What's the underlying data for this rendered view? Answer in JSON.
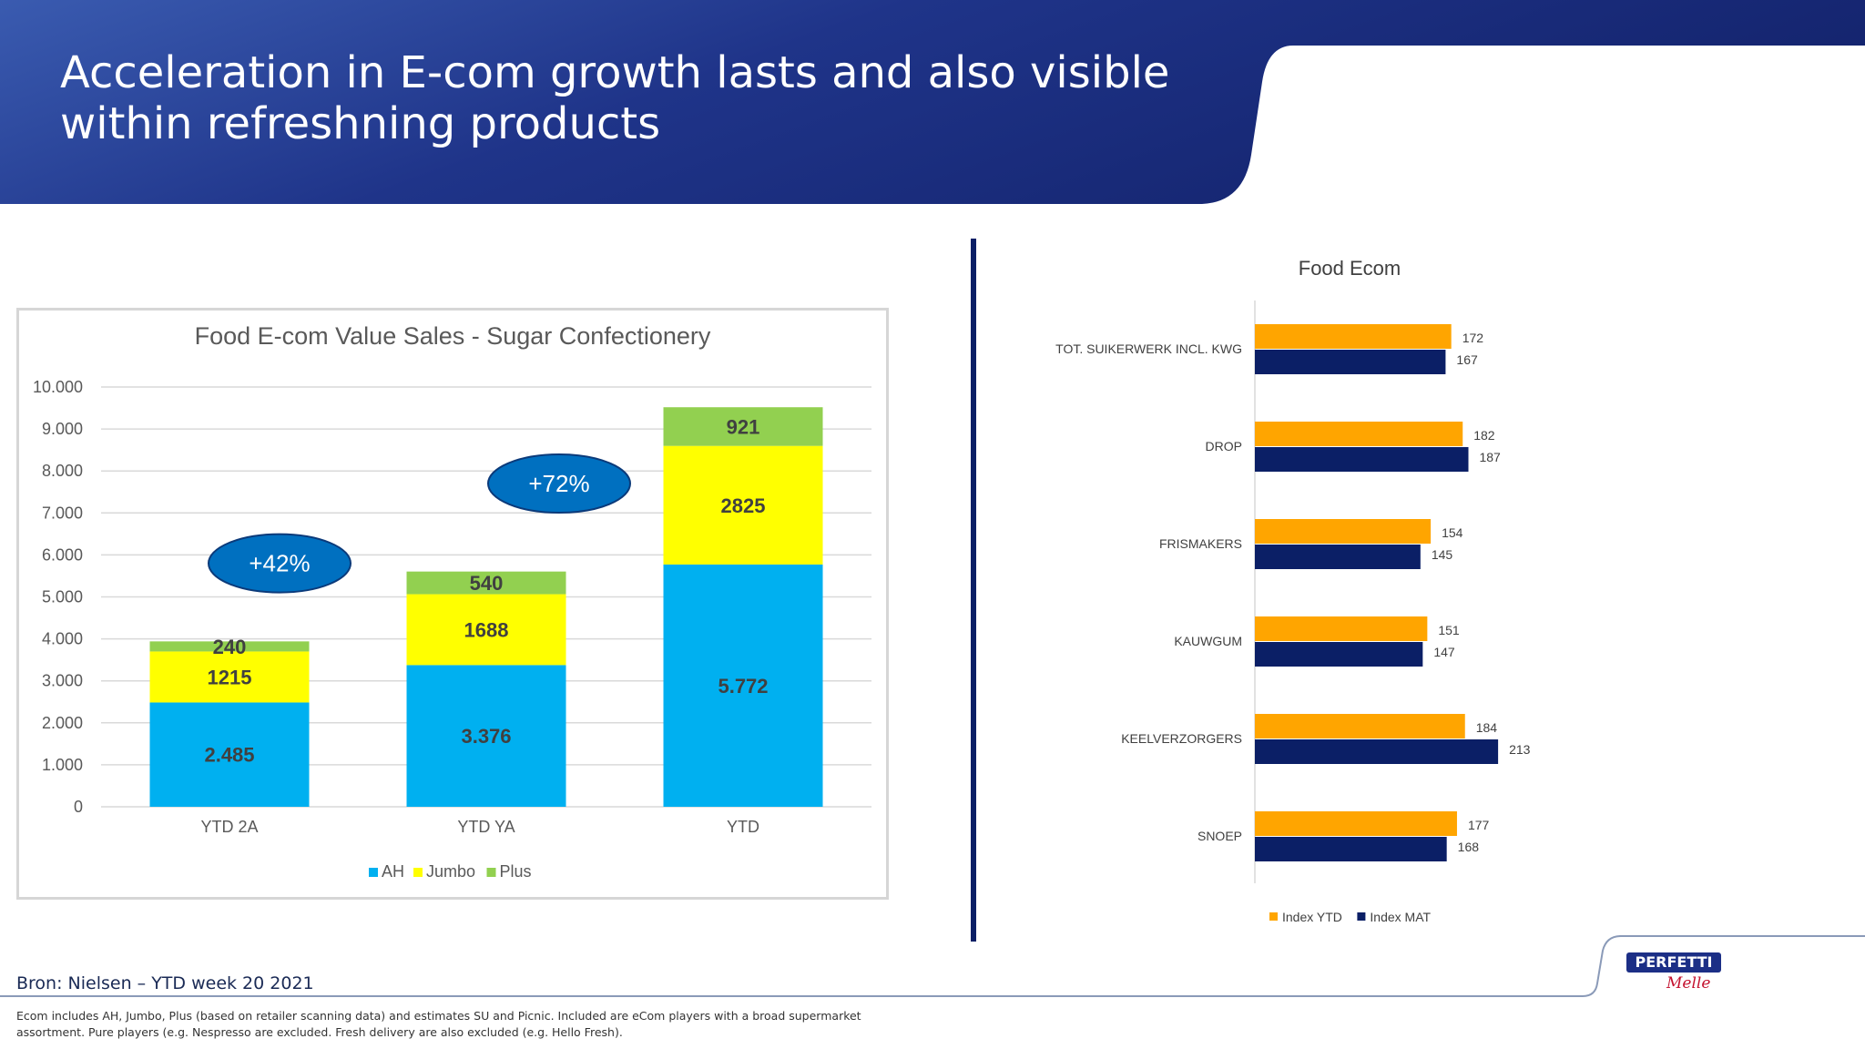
{
  "title": "Acceleration in E-com growth lasts and also visible within refreshning products",
  "source": "Bron: Nielsen – YTD week 20 2021",
  "footnote": "Ecom includes AH, Jumbo, Plus (based on retailer scanning data) and estimates SU and Picnic.  Included are eCom players with a broad supermarket assortment. Pure players (e.g.  Nespresso are excluded. Fresh delivery are also excluded (e.g. Hello Fresh).",
  "logo": {
    "word": "PERFETTI",
    "sub": "Melle"
  },
  "colors": {
    "header": "#1f3489",
    "ah": "#00b0f0",
    "jumbo": "#ffff00",
    "plus": "#92d050",
    "index_ytd": "#ffa500",
    "index_mat": "#0b1f66",
    "bubble": "#0070c0"
  },
  "chart_data": [
    {
      "type": "bar",
      "stacked": true,
      "title": "Food E-com Value Sales - Sugar Confectionery",
      "categories": [
        "YTD 2A",
        "YTD YA",
        "YTD"
      ],
      "series": [
        {
          "name": "AH",
          "values": [
            2485,
            3376,
            5772
          ],
          "labels": [
            "2.485",
            "3.376",
            "5.772"
          ]
        },
        {
          "name": "Jumbo",
          "values": [
            1215,
            1688,
            2825
          ],
          "labels": [
            "1215",
            "1688",
            "2825"
          ]
        },
        {
          "name": "Plus",
          "values": [
            240,
            540,
            921
          ],
          "labels": [
            "240",
            "540",
            "921"
          ]
        }
      ],
      "ylim": [
        0,
        10000
      ],
      "yticks": [
        "0",
        "1.000",
        "2.000",
        "3.000",
        "4.000",
        "5.000",
        "6.000",
        "7.000",
        "8.000",
        "9.000",
        "10.000"
      ],
      "annotations": [
        {
          "text": "+42%",
          "between": [
            "YTD 2A",
            "YTD YA"
          ]
        },
        {
          "text": "+72%",
          "between": [
            "YTD YA",
            "YTD"
          ]
        }
      ],
      "legend": "bottom",
      "grid": true
    },
    {
      "type": "bar",
      "orientation": "horizontal",
      "title": "Food Ecom",
      "categories": [
        "TOT. SUIKERWERK INCL. KWG",
        "DROP",
        "FRISMAKERS",
        "KAUWGUM",
        "KEELVERZORGERS",
        "SNOEP"
      ],
      "series": [
        {
          "name": "Index YTD",
          "values": [
            172,
            182,
            154,
            151,
            184,
            177
          ]
        },
        {
          "name": "Index MAT",
          "values": [
            167,
            187,
            145,
            147,
            213,
            168
          ]
        }
      ],
      "legend": "bottom",
      "grid": false
    }
  ]
}
